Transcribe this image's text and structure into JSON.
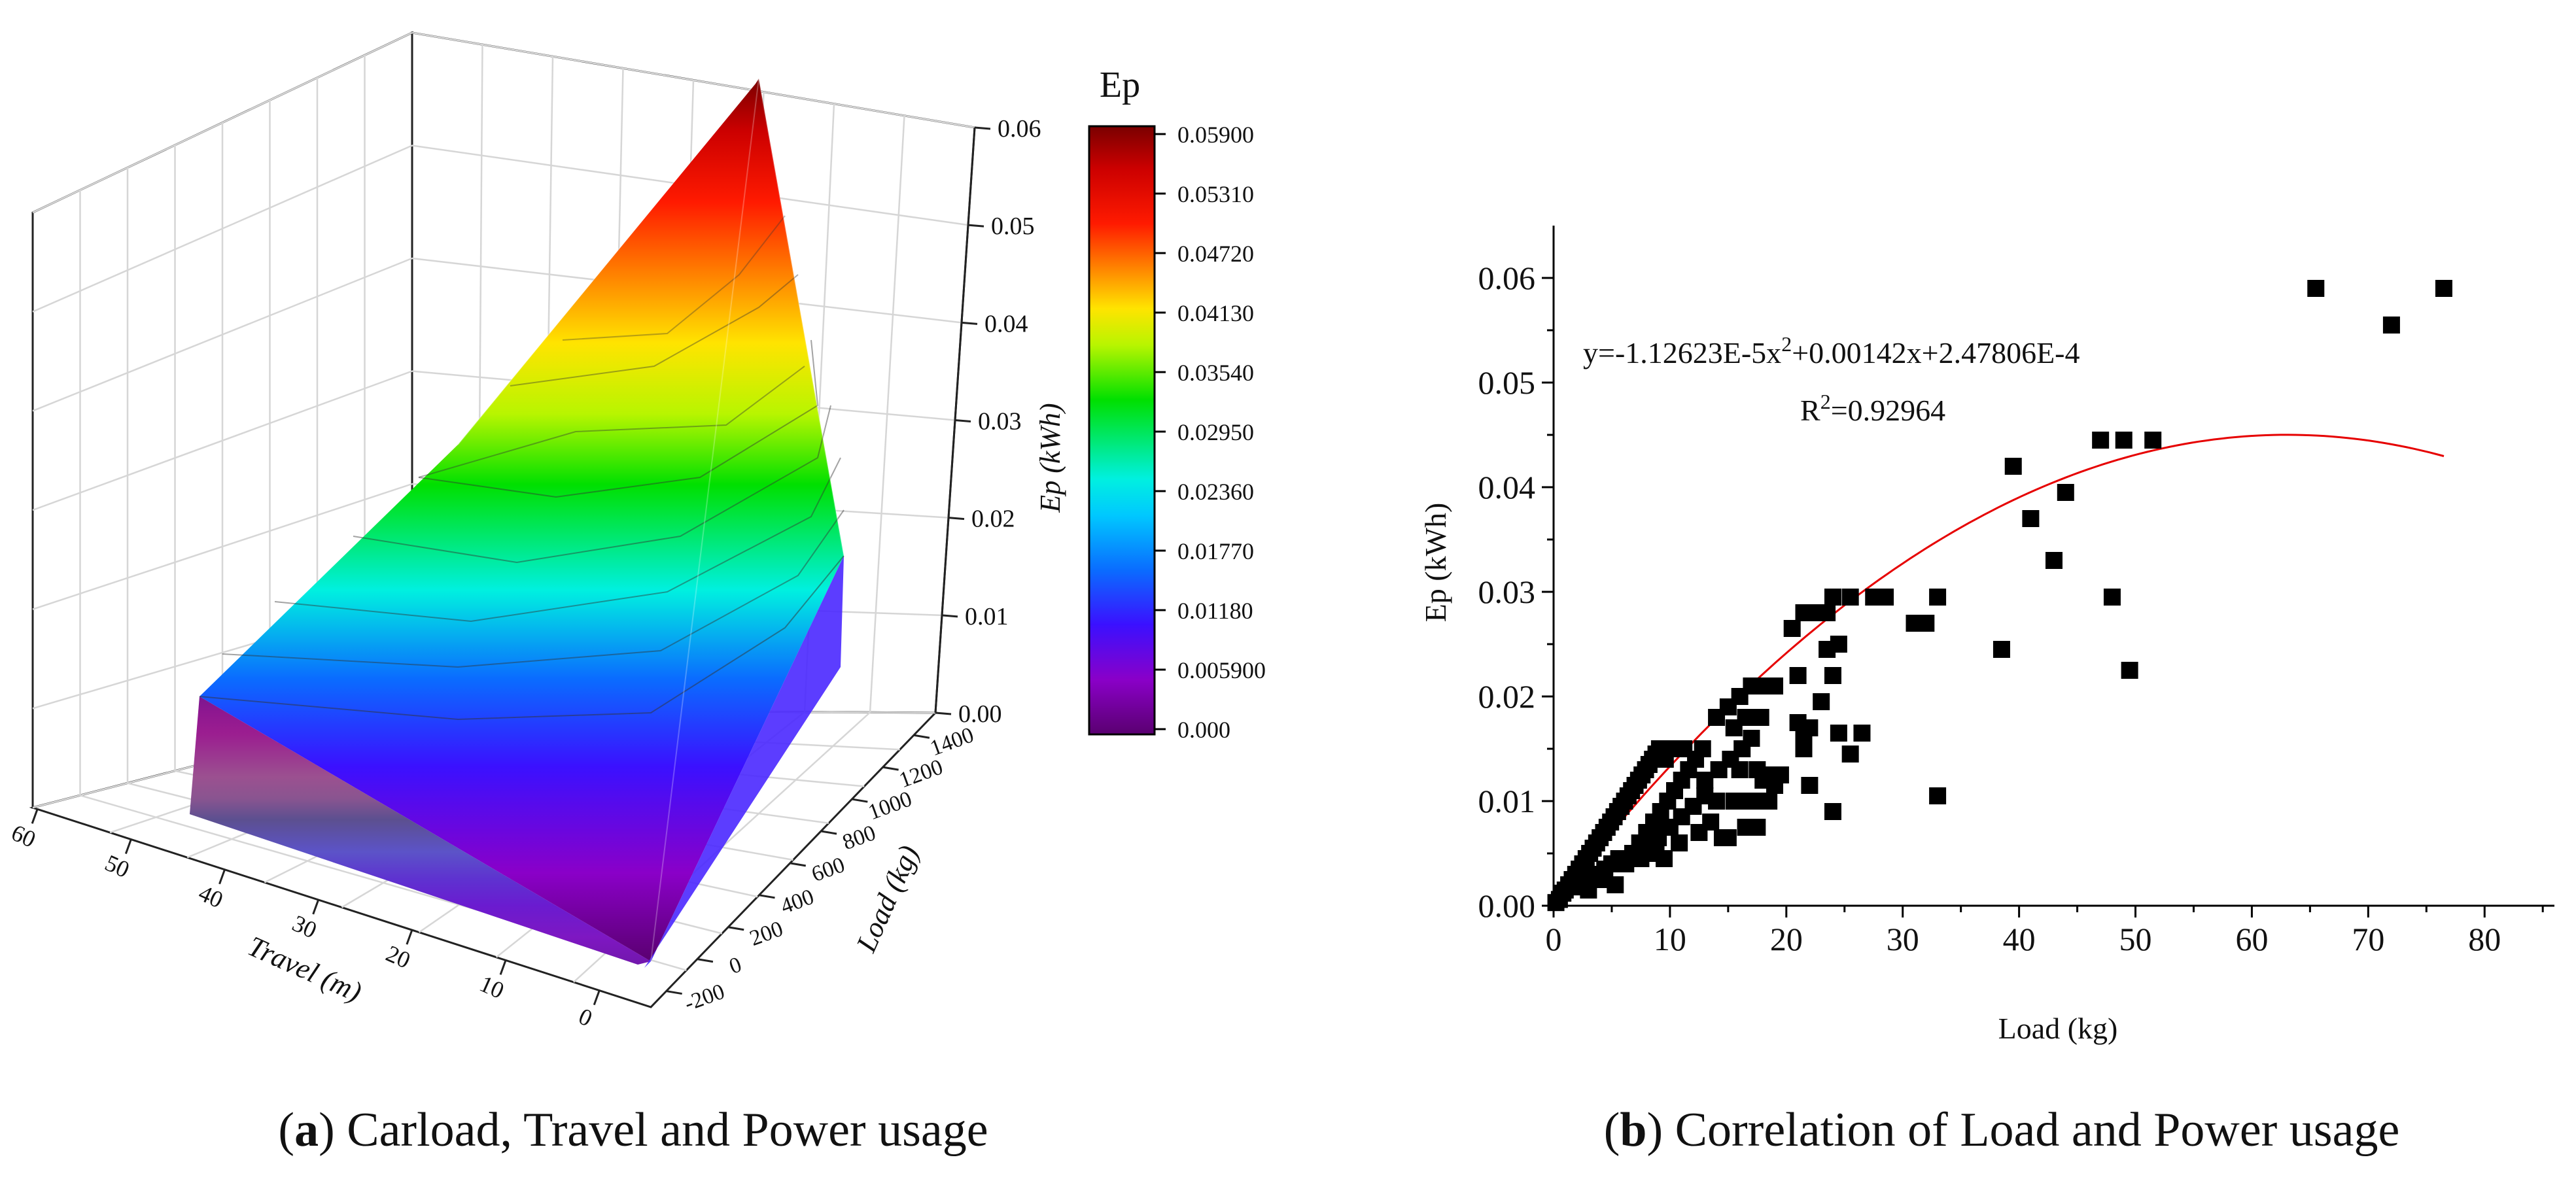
{
  "captions": {
    "a_letter": "a",
    "a_text": " Carload, Travel and Power usage",
    "b_letter": "b",
    "b_text": " Correlation of Load and Power usage"
  },
  "chart_data": [
    {
      "id": "a",
      "type": "surface3d",
      "x_label": "Travel (m)",
      "y_label": "Load (kg)",
      "z_label": "Ep (kWh)",
      "x_ticks": [
        "60",
        "50",
        "40",
        "30",
        "20",
        "10",
        "0"
      ],
      "y_ticks": [
        "-200",
        "0",
        "200",
        "400",
        "600",
        "800",
        "1000",
        "1200",
        "1400"
      ],
      "z_ticks": [
        "0.00",
        "0.01",
        "0.02",
        "0.03",
        "0.04",
        "0.05",
        "0.06"
      ],
      "z_range": [
        0.0,
        0.06
      ],
      "grid": true,
      "colorbar": {
        "title": "Ep",
        "labels": [
          "0.05900",
          "0.05310",
          "0.04720",
          "0.04130",
          "0.03540",
          "0.02950",
          "0.02360",
          "0.01770",
          "0.01180",
          "0.005900",
          "0.000"
        ],
        "colors": [
          "#7a0000",
          "#cc0000",
          "#ff1a00",
          "#ff7f00",
          "#ffe400",
          "#b8f500",
          "#00e000",
          "#00f0e0",
          "#0a6cff",
          "#3b10ff",
          "#8a00c8",
          "#5a0070"
        ]
      }
    },
    {
      "id": "b",
      "type": "scatter",
      "xlabel": "Load (kg)",
      "ylabel": "Ep (kWh)",
      "xlim": [
        0,
        86
      ],
      "ylim": [
        0,
        0.065
      ],
      "x_ticks": [
        "0",
        "10",
        "20",
        "30",
        "40",
        "50",
        "60",
        "70",
        "80"
      ],
      "y_ticks": [
        "0.00",
        "0.01",
        "0.02",
        "0.03",
        "0.04",
        "0.05",
        "0.06"
      ],
      "equation": {
        "prefix": "y=-1.12623E-5x",
        "sup": "2",
        "suffix": "+0.00142x+2.47806E-4"
      },
      "r2": {
        "prefix": "R",
        "sup": "2",
        "suffix": "=0.92964"
      },
      "fit": {
        "type": "poly2",
        "a": -1.12623e-05,
        "b": 0.00142,
        "c": 0.000247806,
        "x_range": [
          0,
          76.5
        ],
        "color": "#e60000"
      },
      "marker_color": "#000000",
      "points": [
        [
          0.2,
          0.0003
        ],
        [
          0.5,
          0.0006
        ],
        [
          0.8,
          0.0012
        ],
        [
          1.0,
          0.0015
        ],
        [
          1.3,
          0.002
        ],
        [
          1.6,
          0.0025
        ],
        [
          1.9,
          0.003
        ],
        [
          2.2,
          0.0035
        ],
        [
          2.5,
          0.004
        ],
        [
          2.8,
          0.0045
        ],
        [
          3.1,
          0.005
        ],
        [
          3.4,
          0.0055
        ],
        [
          3.7,
          0.006
        ],
        [
          4.0,
          0.0065
        ],
        [
          4.3,
          0.007
        ],
        [
          4.6,
          0.0075
        ],
        [
          4.9,
          0.008
        ],
        [
          5.2,
          0.0085
        ],
        [
          5.5,
          0.009
        ],
        [
          5.8,
          0.0095
        ],
        [
          6.1,
          0.01
        ],
        [
          6.4,
          0.0105
        ],
        [
          6.7,
          0.011
        ],
        [
          7.0,
          0.0115
        ],
        [
          7.3,
          0.012
        ],
        [
          7.6,
          0.0125
        ],
        [
          7.9,
          0.013
        ],
        [
          8.2,
          0.0135
        ],
        [
          8.5,
          0.014
        ],
        [
          8.8,
          0.0145
        ],
        [
          9.1,
          0.015
        ],
        [
          2.0,
          0.0018
        ],
        [
          2.6,
          0.002
        ],
        [
          3.2,
          0.0025
        ],
        [
          3.8,
          0.003
        ],
        [
          4.4,
          0.0035
        ],
        [
          5.0,
          0.004
        ],
        [
          5.6,
          0.0045
        ],
        [
          4.2,
          0.0025
        ],
        [
          3.0,
          0.0015
        ],
        [
          5.3,
          0.002
        ],
        [
          6.2,
          0.004
        ],
        [
          6.8,
          0.005
        ],
        [
          7.4,
          0.006
        ],
        [
          8.0,
          0.007
        ],
        [
          8.6,
          0.008
        ],
        [
          9.2,
          0.009
        ],
        [
          9.8,
          0.01
        ],
        [
          10.4,
          0.011
        ],
        [
          11.0,
          0.012
        ],
        [
          11.6,
          0.013
        ],
        [
          12.2,
          0.014
        ],
        [
          10.2,
          0.015
        ],
        [
          11.2,
          0.015
        ],
        [
          12.8,
          0.015
        ],
        [
          9.6,
          0.014
        ],
        [
          8.4,
          0.0055
        ],
        [
          9.0,
          0.0065
        ],
        [
          10.0,
          0.0075
        ],
        [
          11.0,
          0.0085
        ],
        [
          12.0,
          0.0095
        ],
        [
          13.0,
          0.0105
        ],
        [
          7.5,
          0.0045
        ],
        [
          8.8,
          0.005
        ],
        [
          9.5,
          0.0045
        ],
        [
          10.8,
          0.006
        ],
        [
          12.5,
          0.007
        ],
        [
          13.5,
          0.008
        ],
        [
          14.5,
          0.0065
        ],
        [
          15.0,
          0.0065
        ],
        [
          14.0,
          0.01
        ],
        [
          15.5,
          0.01
        ],
        [
          16.5,
          0.01
        ],
        [
          17.5,
          0.01
        ],
        [
          18.5,
          0.01
        ],
        [
          13.0,
          0.012
        ],
        [
          14.2,
          0.013
        ],
        [
          15.2,
          0.014
        ],
        [
          16.2,
          0.015
        ],
        [
          17.0,
          0.016
        ],
        [
          14.0,
          0.018
        ],
        [
          15.0,
          0.019
        ],
        [
          16.0,
          0.02
        ],
        [
          17.0,
          0.021
        ],
        [
          18.0,
          0.021
        ],
        [
          19.0,
          0.021
        ],
        [
          15.5,
          0.017
        ],
        [
          16.5,
          0.018
        ],
        [
          17.8,
          0.018
        ],
        [
          16.0,
          0.013
        ],
        [
          17.5,
          0.013
        ],
        [
          18.5,
          0.0125
        ],
        [
          19.5,
          0.0125
        ],
        [
          16.5,
          0.0075
        ],
        [
          17.5,
          0.0075
        ],
        [
          18.0,
          0.012
        ],
        [
          19.0,
          0.0115
        ],
        [
          20.5,
          0.0265
        ],
        [
          21.5,
          0.028
        ],
        [
          22.5,
          0.028
        ],
        [
          23.5,
          0.028
        ],
        [
          24.0,
          0.0295
        ],
        [
          25.5,
          0.0295
        ],
        [
          27.5,
          0.0295
        ],
        [
          28.5,
          0.0295
        ],
        [
          21.0,
          0.0175
        ],
        [
          21.5,
          0.0165
        ],
        [
          22.0,
          0.017
        ],
        [
          21.0,
          0.022
        ],
        [
          23.0,
          0.0195
        ],
        [
          23.5,
          0.0245
        ],
        [
          24.0,
          0.022
        ],
        [
          24.5,
          0.025
        ],
        [
          21.5,
          0.015
        ],
        [
          22.0,
          0.0115
        ],
        [
          24.0,
          0.009
        ],
        [
          24.5,
          0.0165
        ],
        [
          25.5,
          0.0145
        ],
        [
          26.5,
          0.0165
        ],
        [
          31.0,
          0.027
        ],
        [
          32.0,
          0.027
        ],
        [
          33.0,
          0.0295
        ],
        [
          33.0,
          0.0105
        ],
        [
          38.5,
          0.0245
        ],
        [
          39.5,
          0.042
        ],
        [
          41.0,
          0.037
        ],
        [
          43.0,
          0.033
        ],
        [
          44.0,
          0.0395
        ],
        [
          47.0,
          0.0445
        ],
        [
          48.0,
          0.0295
        ],
        [
          49.0,
          0.0445
        ],
        [
          49.5,
          0.0225
        ],
        [
          51.5,
          0.0445
        ],
        [
          65.5,
          0.059
        ],
        [
          72.0,
          0.0555
        ],
        [
          76.5,
          0.059
        ]
      ]
    }
  ]
}
